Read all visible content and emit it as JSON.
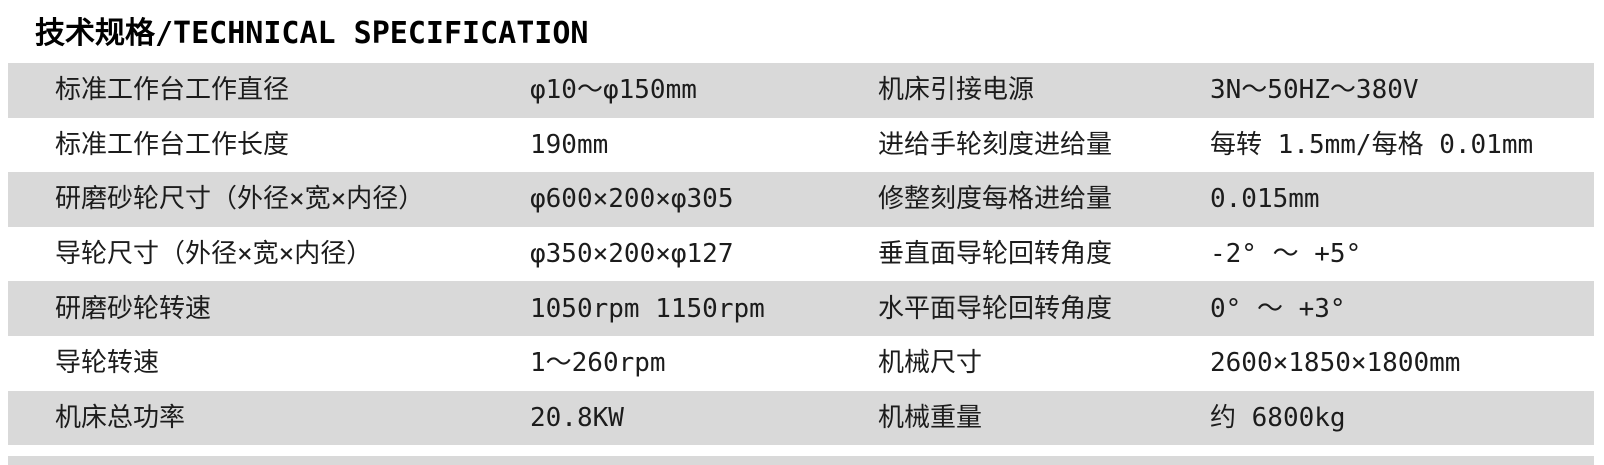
{
  "page": {
    "title": "技术规格/TECHNICAL SPECIFICATION"
  },
  "colors": {
    "row_stripe": "#d9d9d9",
    "text": "#1c1c1c",
    "background": "#ffffff"
  },
  "table": {
    "rows": [
      {
        "label1": "标准工作台工作直径",
        "value1": "φ10～φ150mm",
        "label2": "机床引接电源",
        "value2": "3N～50HZ～380V"
      },
      {
        "label1": "标准工作台工作长度",
        "value1": "190mm",
        "label2": "进给手轮刻度进给量",
        "value2": "每转 1.5mm/每格 0.01mm"
      },
      {
        "label1": "研磨砂轮尺寸（外径×宽×内径）",
        "value1": "φ600×200×φ305",
        "label2": "修整刻度每格进给量",
        "value2": "0.015mm"
      },
      {
        "label1": "导轮尺寸（外径×宽×内径）",
        "value1": "φ350×200×φ127",
        "label2": "垂直面导轮回转角度",
        "value2": "-2° ～ +5°"
      },
      {
        "label1": "研磨砂轮转速",
        "value1": "1050rpm 1150rpm",
        "label2": "水平面导轮回转角度",
        "value2": "0° ～ +3°"
      },
      {
        "label1": "导轮转速",
        "value1": "1～260rpm",
        "label2": "机械尺寸",
        "value2": "2600×1850×1800mm"
      },
      {
        "label1": "机床总功率",
        "value1": "20.8KW",
        "label2": "机械重量",
        "value2": "约 6800kg"
      }
    ]
  }
}
